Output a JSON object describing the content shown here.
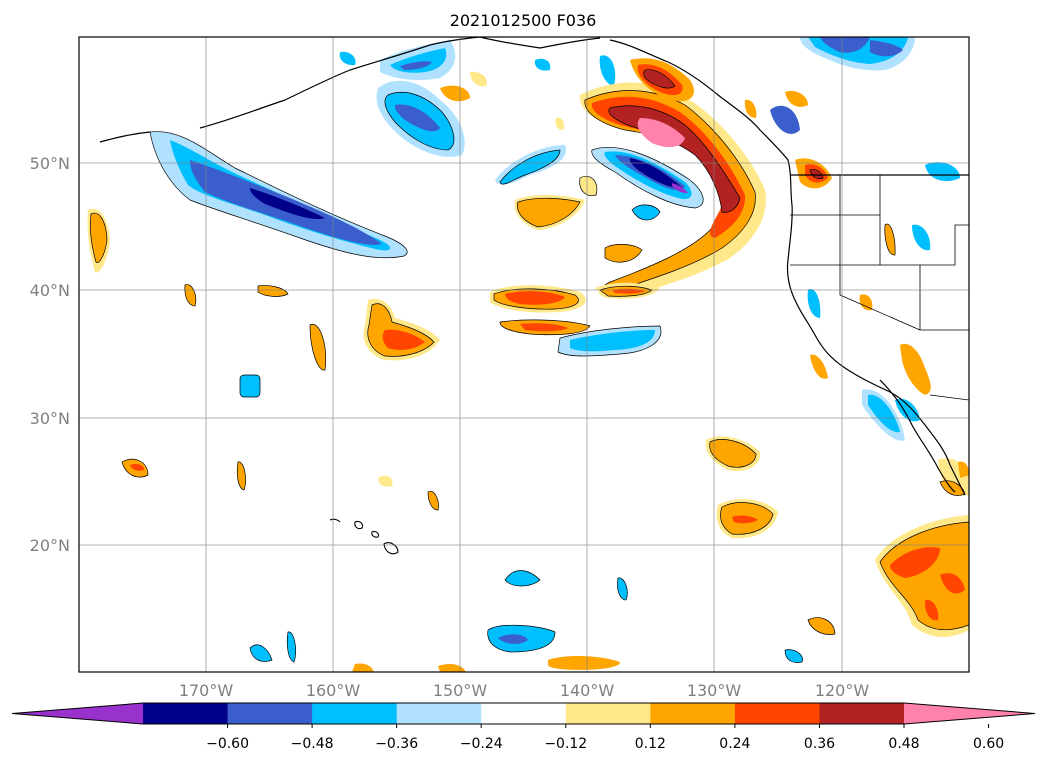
{
  "title": "2021012500 F036",
  "map": {
    "lat_labels": [
      "50°N",
      "40°N",
      "30°N",
      "20°N"
    ],
    "lon_labels": [
      "170°W",
      "160°W",
      "150°W",
      "140°W",
      "130°W",
      "120°W"
    ],
    "gridlines": true,
    "extent": {
      "lon_min": -180,
      "lon_max": -110,
      "lat_min": 10,
      "lat_max": 60
    }
  },
  "colorbar": {
    "labels": [
      "−0.60",
      "−0.48",
      "−0.36",
      "−0.24",
      "−0.12",
      "0.12",
      "0.24",
      "0.36",
      "0.48",
      "0.60"
    ],
    "colors": [
      "#9932CC",
      "#00008B",
      "#3A5FCD",
      "#00BFFF",
      "#B0E2FF",
      "#FFFFFF",
      "#FFE88A",
      "#FFA500",
      "#FF4500",
      "#B22222",
      "#FF82AB"
    ],
    "extend": "both"
  },
  "fields": [
    {
      "sign": "negative",
      "peak": -0.55,
      "lon": -164,
      "lat": 47.5
    },
    {
      "sign": "negative",
      "peak": -0.5,
      "lon": -154.5,
      "lat": 54.5
    },
    {
      "sign": "negative",
      "peak": -0.6,
      "lon": -133,
      "lat": 48
    },
    {
      "sign": "negative",
      "peak": -0.45,
      "lon": -158,
      "lat": 58.5
    },
    {
      "sign": "negative",
      "peak": -0.45,
      "lon": -121,
      "lat": 58.5
    },
    {
      "sign": "negative",
      "peak": -0.35,
      "lon": -143,
      "lat": 36
    },
    {
      "sign": "negative",
      "peak": -0.35,
      "lon": -145,
      "lat": 50
    },
    {
      "sign": "negative",
      "peak": -0.3,
      "lon": -115,
      "lat": 48.5
    },
    {
      "sign": "negative",
      "peak": -0.3,
      "lon": -117,
      "lat": 30.5
    },
    {
      "sign": "negative",
      "peak": -0.4,
      "lon": -145,
      "lat": 12.5
    },
    {
      "sign": "positive",
      "peak": 0.65,
      "lon": -132,
      "lat": 53
    },
    {
      "sign": "positive",
      "peak": 0.55,
      "lon": -129,
      "lat": 48.5
    },
    {
      "sign": "positive",
      "peak": 0.35,
      "lon": -144,
      "lat": 39.5
    },
    {
      "sign": "positive",
      "peak": 0.38,
      "lon": -153.5,
      "lat": 36
    },
    {
      "sign": "positive",
      "peak": 0.3,
      "lon": -143,
      "lat": 44.5
    },
    {
      "sign": "positive",
      "peak": 0.3,
      "lon": -129.5,
      "lat": 28
    },
    {
      "sign": "positive",
      "peak": 0.35,
      "lon": -128,
      "lat": 22
    },
    {
      "sign": "positive",
      "peak": 0.4,
      "lon": -113,
      "lat": 17
    },
    {
      "sign": "positive",
      "peak": 0.3,
      "lon": -137.5,
      "lat": 40.5
    },
    {
      "sign": "positive",
      "peak": 0.3,
      "lon": -114.5,
      "lat": 34
    }
  ]
}
